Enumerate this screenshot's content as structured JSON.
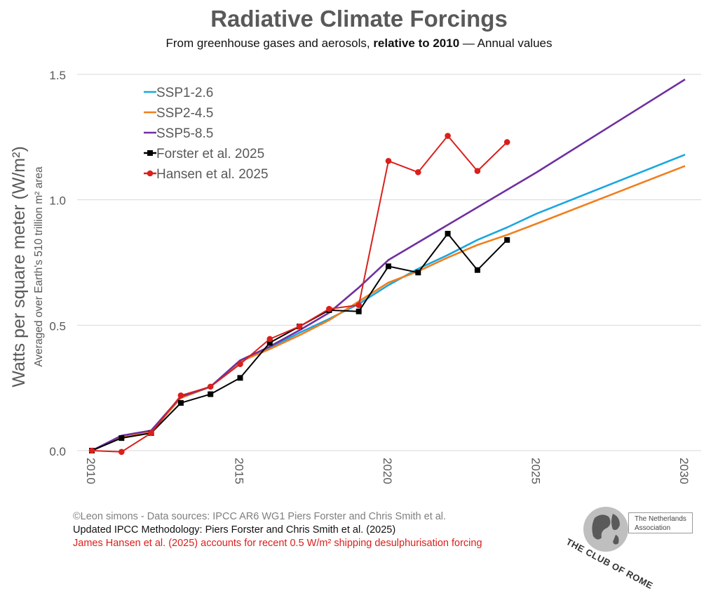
{
  "chart_data": {
    "type": "line",
    "title": "Radiative Climate Forcings",
    "subtitle_prefix": "From greenhouse gases and aerosols, ",
    "subtitle_bold": "relative to 2010",
    "subtitle_suffix": " — Annual values",
    "ylabel": "Watts per square meter (W/m²)",
    "ylabel_sub": "Averaged over Earth's 510 trillion m² area",
    "xlim": [
      2010,
      2030
    ],
    "ylim": [
      0,
      1.5
    ],
    "x_ticks": [
      2010,
      2015,
      2020,
      2025,
      2030
    ],
    "y_ticks": [
      0.0,
      0.5,
      1.0,
      1.5
    ],
    "y_tick_labels": [
      "0.0",
      "0.5",
      "1.0",
      "1.5"
    ],
    "legend_position": "top-left",
    "series": [
      {
        "name": "SSP1-2.6",
        "color": "#1aa7e0",
        "marker": "none",
        "x": [
          2010,
          2011,
          2012,
          2013,
          2014,
          2015,
          2016,
          2017,
          2018,
          2019,
          2020,
          2021,
          2022,
          2023,
          2024,
          2025,
          2030
        ],
        "y": [
          0.0,
          0.055,
          0.075,
          0.21,
          0.255,
          0.355,
          0.41,
          0.47,
          0.525,
          0.585,
          0.66,
          0.725,
          0.78,
          0.84,
          0.89,
          0.945,
          1.18
        ]
      },
      {
        "name": "SSP2-4.5",
        "color": "#f07f1e",
        "marker": "none",
        "x": [
          2010,
          2011,
          2012,
          2013,
          2014,
          2015,
          2016,
          2017,
          2018,
          2019,
          2020,
          2021,
          2022,
          2023,
          2024,
          2025,
          2030
        ],
        "y": [
          0.0,
          0.055,
          0.075,
          0.21,
          0.255,
          0.355,
          0.405,
          0.46,
          0.52,
          0.595,
          0.67,
          0.715,
          0.77,
          0.82,
          0.86,
          0.905,
          1.135
        ]
      },
      {
        "name": "SSP5-8.5",
        "color": "#7030a0",
        "marker": "none",
        "x": [
          2010,
          2011,
          2012,
          2013,
          2014,
          2015,
          2016,
          2017,
          2018,
          2019,
          2020,
          2025,
          2030
        ],
        "y": [
          0.0,
          0.06,
          0.08,
          0.215,
          0.255,
          0.36,
          0.415,
          0.48,
          0.55,
          0.65,
          0.76,
          1.11,
          1.48
        ]
      },
      {
        "name": "Forster et al. 2025",
        "color": "#000000",
        "marker": "square",
        "x": [
          2010,
          2011,
          2012,
          2013,
          2014,
          2015,
          2016,
          2017,
          2018,
          2019,
          2020,
          2021,
          2022,
          2023,
          2024
        ],
        "y": [
          0.0,
          0.05,
          0.07,
          0.19,
          0.225,
          0.29,
          0.43,
          0.495,
          0.56,
          0.555,
          0.735,
          0.71,
          0.865,
          0.72,
          0.84
        ]
      },
      {
        "name": "Hansen et al. 2025",
        "color": "#d9201c",
        "marker": "circle",
        "x": [
          2010,
          2011,
          2012,
          2013,
          2014,
          2015,
          2016,
          2017,
          2018,
          2019,
          2020,
          2021,
          2022,
          2023,
          2024
        ],
        "y": [
          0.0,
          -0.005,
          0.07,
          0.22,
          0.255,
          0.345,
          0.445,
          0.495,
          0.565,
          0.58,
          1.155,
          1.11,
          1.255,
          1.115,
          1.23
        ]
      }
    ]
  },
  "footer": {
    "line1": "©Leon simons - Data sources: IPCC AR6 WG1 Piers Forster and Chris Smith et al.",
    "line2": "Updated IPCC Methodology: Piers Forster and Chris Smith et al. (2025)",
    "line3": "James Hansen et al. (2025) accounts for recent 0.5 W/m² shipping desulphurisation forcing"
  },
  "logo": {
    "association": "The Netherlands\nAssociation",
    "name": "THE CLUB OF ROME"
  }
}
